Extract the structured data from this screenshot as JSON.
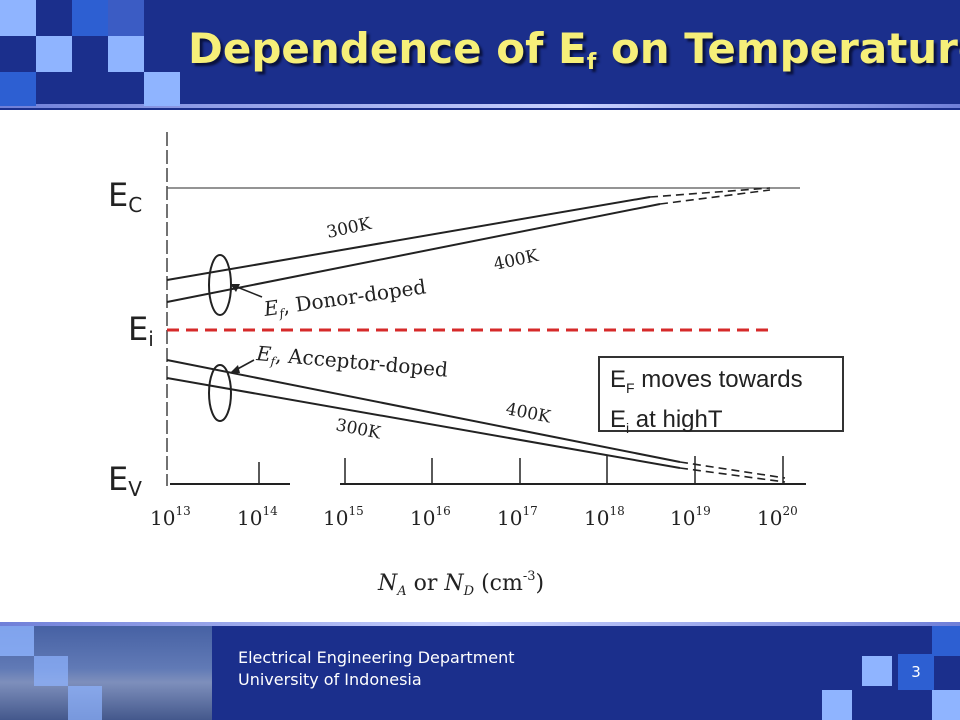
{
  "slide": {
    "title_main": "Dependence of E",
    "title_sub": "f",
    "title_rest": " on Temperature",
    "page_number": "3",
    "colors": {
      "header": "#1b2f8c",
      "title": "#f6ef79",
      "tile_light": "#8fb4ff",
      "tile_mid": "#2d5fd2",
      "fermi_intrinsic": "#d62a2a"
    }
  },
  "footer": {
    "department": "Electrical Engineering Department",
    "university": "University of Indonesia"
  },
  "diagram": {
    "band_labels": {
      "ec": "E",
      "ec_sub": "C",
      "ei": "E",
      "ei_sub": "i",
      "ev": "E",
      "ev_sub": "V"
    },
    "curve_labels": {
      "donor_300": "300K",
      "donor_400": "400K",
      "acceptor_400": "400K",
      "acceptor_300": "300K"
    },
    "group_labels": {
      "donor_prefix": "E",
      "donor_sub": "f",
      "donor_text": ", Donor-doped",
      "acceptor_prefix": "E",
      "acceptor_sub": "f",
      "acceptor_text": ", Acceptor-doped"
    },
    "x_ticks": [
      {
        "base": "10",
        "exp": "13"
      },
      {
        "base": "10",
        "exp": "14"
      },
      {
        "base": "10",
        "exp": "15"
      },
      {
        "base": "10",
        "exp": "16"
      },
      {
        "base": "10",
        "exp": "17"
      },
      {
        "base": "10",
        "exp": "18"
      },
      {
        "base": "10",
        "exp": "19"
      },
      {
        "base": "10",
        "exp": "20"
      }
    ],
    "x_axis_label": {
      "na": "N",
      "na_sub": "A",
      "or": " or ",
      "nd": "N",
      "nd_sub": "D",
      "unit": " (cm",
      "unit_exp": "-3",
      "unit_close": ")"
    },
    "note": {
      "line1_pre": "E",
      "line1_sub": "F",
      "line1_post": " moves towards",
      "line2_pre": "E",
      "line2_sub": "i",
      "line2_post": " at highT"
    }
  }
}
